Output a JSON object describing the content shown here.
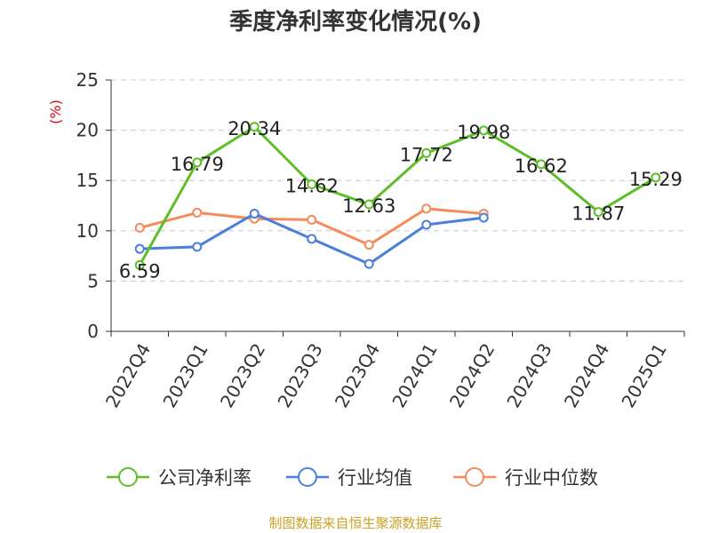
{
  "chart_data": {
    "type": "line",
    "title": "季度净利率变化情况(%)",
    "ylabel": "(%)",
    "categories": [
      "2022Q4",
      "2023Q1",
      "2023Q2",
      "2023Q3",
      "2023Q4",
      "2024Q1",
      "2024Q2",
      "2024Q3",
      "2024Q4",
      "2025Q1"
    ],
    "yticks": [
      0,
      5,
      10,
      15,
      20,
      25
    ],
    "ylim": [
      0,
      25
    ],
    "grid": true,
    "legend": "bottom",
    "series": [
      {
        "name": "公司净利率",
        "color": "#5cbf26",
        "values": [
          6.59,
          16.79,
          20.34,
          14.62,
          12.63,
          17.72,
          19.98,
          16.62,
          11.87,
          15.29
        ],
        "labels": [
          "6.59",
          "16.79",
          "20.34",
          "14.62",
          "12.63",
          "17.72",
          "19.98",
          "16.62",
          "11.87",
          "15.29"
        ]
      },
      {
        "name": "行业均值",
        "color": "#4a7fdb",
        "values": [
          8.2,
          8.4,
          11.7,
          9.2,
          6.7,
          10.6,
          11.3,
          null,
          null,
          null
        ]
      },
      {
        "name": "行业中位数",
        "color": "#f38b5a",
        "values": [
          10.3,
          11.8,
          11.2,
          11.1,
          8.6,
          12.2,
          11.7,
          null,
          null,
          null
        ]
      }
    ]
  },
  "source": "制图数据来自恒生聚源数据库"
}
